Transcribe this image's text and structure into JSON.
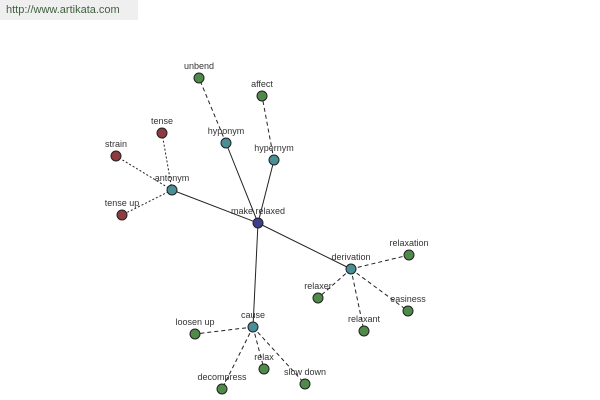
{
  "header": {
    "url": "http://www.artikata.com"
  },
  "nodes": [
    {
      "label": "make relaxed",
      "color": "#3b3f8c"
    },
    {
      "label": "antonym",
      "color": "#4a8e97"
    },
    {
      "label": "hyponym",
      "color": "#4a8e97"
    },
    {
      "label": "hypernym",
      "color": "#4a8e97"
    },
    {
      "label": "derivation",
      "color": "#4a8e97"
    },
    {
      "label": "cause",
      "color": "#4a8e97"
    },
    {
      "label": "unbend",
      "color": "#4f8a4a"
    },
    {
      "label": "affect",
      "color": "#4f8a4a"
    },
    {
      "label": "tense",
      "color": "#8e3b3f"
    },
    {
      "label": "strain",
      "color": "#8e3b3f"
    },
    {
      "label": "tense up",
      "color": "#8e3b3f"
    },
    {
      "label": "relaxation",
      "color": "#4f8a4a"
    },
    {
      "label": "relaxer",
      "color": "#4f8a4a"
    },
    {
      "label": "relaxant",
      "color": "#4f8a4a"
    },
    {
      "label": "easiness",
      "color": "#4f8a4a"
    },
    {
      "label": "loosen up",
      "color": "#4f8a4a"
    },
    {
      "label": "decompress",
      "color": "#4f8a4a"
    },
    {
      "label": "relax",
      "color": "#4f8a4a"
    },
    {
      "label": "slow down",
      "color": "#4f8a4a"
    }
  ]
}
